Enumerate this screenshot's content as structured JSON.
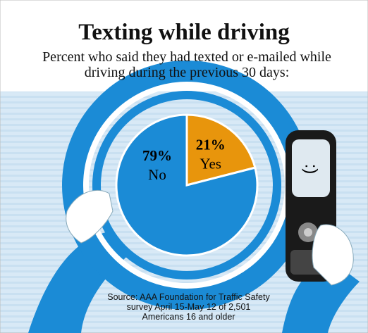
{
  "chart_data": {
    "type": "pie",
    "title": "Texting while driving",
    "subtitle": "Percent who said they had texted or e-mailed while driving during the previous 30 days:",
    "categories": [
      "No",
      "Yes"
    ],
    "values": [
      79,
      21
    ],
    "value_labels": [
      "79%",
      "21%"
    ],
    "colors": [
      "#1b8bd6",
      "#e8950c"
    ],
    "annotations": [
      ":)"
    ],
    "source": "Source: AAA Foundation for Traffic Safety survey April 15-May 12 of 2,501 Americans 16 and older"
  }
}
